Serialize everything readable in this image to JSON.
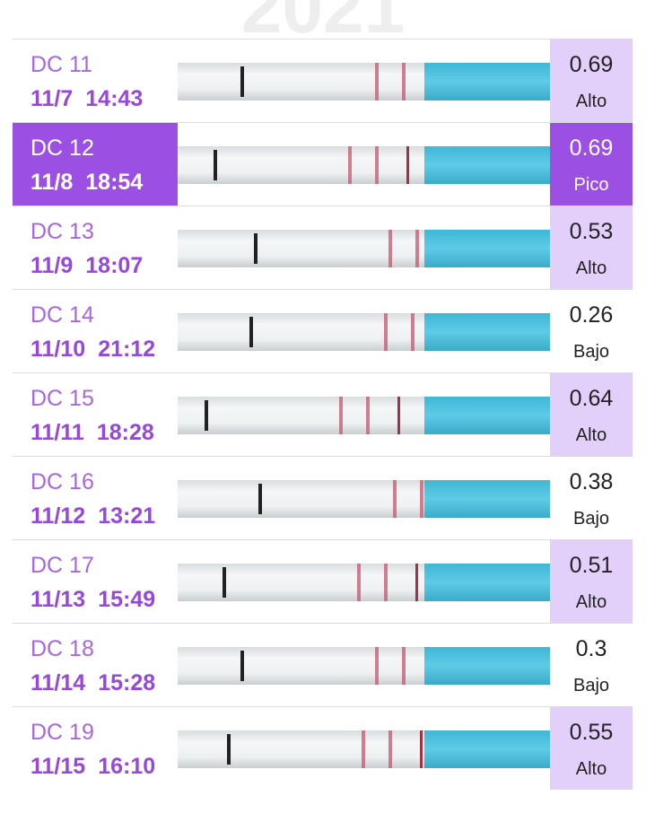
{
  "header": {
    "year": "2021"
  },
  "rows": [
    {
      "day": "DC 11",
      "date": "11/7",
      "time": "14:43",
      "value": 0.69,
      "status": "Alto",
      "value_bg": "#e3d0fa"
    },
    {
      "day": "DC 12",
      "date": "11/8",
      "time": "18:54",
      "value": 0.69,
      "status": "Pico",
      "value_bg": "#9c4fe3",
      "day_bg": "#9c4fe3"
    },
    {
      "day": "DC 13",
      "date": "11/9",
      "time": "18:07",
      "value": 0.53,
      "status": "Alto",
      "value_bg": "#e3d0fa"
    },
    {
      "day": "DC 14",
      "date": "11/10",
      "time": "21:12",
      "value": 0.26,
      "status": "Bajo",
      "value_bg": "#ffffff"
    },
    {
      "day": "DC 15",
      "date": "11/11",
      "time": "18:28",
      "value": 0.64,
      "status": "Alto",
      "value_bg": "#e3d0fa"
    },
    {
      "day": "DC 16",
      "date": "11/12",
      "time": "13:21",
      "value": 0.38,
      "status": "Bajo",
      "value_bg": "#ffffff"
    },
    {
      "day": "DC 17",
      "date": "11/13",
      "time": "15:49",
      "value": 0.51,
      "status": "Alto",
      "value_bg": "#e3d0fa"
    },
    {
      "day": "DC 18",
      "date": "11/14",
      "time": "15:28",
      "value": 0.3,
      "status": "Bajo",
      "value_bg": "#ffffff"
    },
    {
      "day": "DC 19",
      "date": "11/15",
      "time": "16:10",
      "value": 0.55,
      "status": "Alto",
      "value_bg": "#e3d0fa"
    }
  ]
}
